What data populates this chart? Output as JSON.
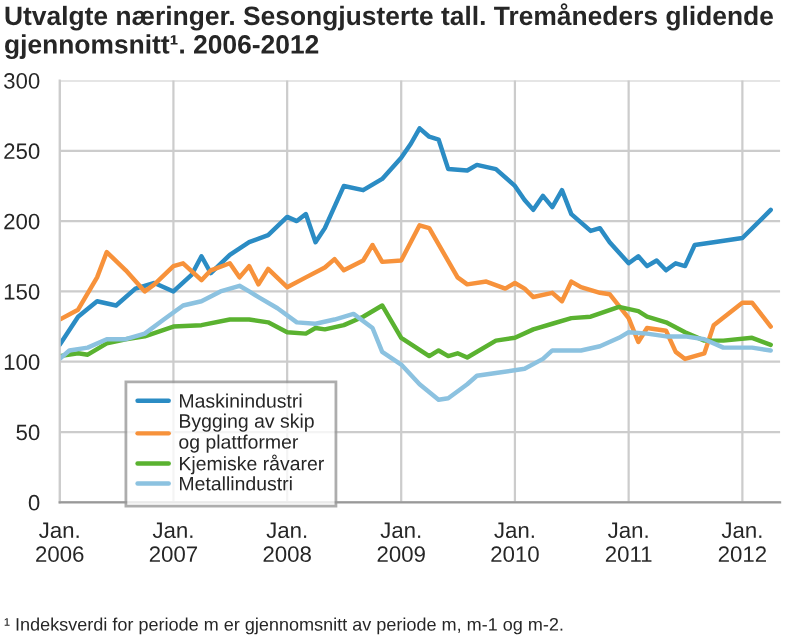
{
  "chart_data": {
    "type": "line",
    "title": "Utvalgte næringer. Sesongjusterte tall. Tremåneders glidende gjennomsnitt¹. 2006-2012",
    "annotations": [
      "¹ Indeksverdi for periode m er gjennomsnitt av periode m, m-1 og m-2."
    ],
    "series": [
      {
        "name": "Maskinindustri",
        "color": "#2b8cc4",
        "x": [
          "2006-01",
          "2006-03",
          "2006-05",
          "2006-07",
          "2006-09",
          "2006-11",
          "2007-01",
          "2007-03",
          "2007-04",
          "2007-05",
          "2007-07",
          "2007-09",
          "2007-11",
          "2008-01",
          "2008-02",
          "2008-03",
          "2008-04",
          "2008-05",
          "2008-07",
          "2008-09",
          "2008-11",
          "2009-01",
          "2009-02",
          "2009-03",
          "2009-04",
          "2009-05",
          "2009-06",
          "2009-08",
          "2009-09",
          "2009-11",
          "2010-01",
          "2010-02",
          "2010-03",
          "2010-04",
          "2010-05",
          "2010-06",
          "2010-07",
          "2010-09",
          "2010-10",
          "2010-11",
          "2011-01",
          "2011-02",
          "2011-03",
          "2011-04",
          "2011-05",
          "2011-06",
          "2011-07",
          "2011-08",
          "2011-10",
          "2012-01",
          "2012-04"
        ],
        "values": [
          112,
          132,
          143,
          140,
          152,
          156,
          150,
          162,
          175,
          163,
          176,
          185,
          190,
          203,
          200,
          205,
          185,
          195,
          225,
          222,
          230,
          245,
          255,
          266,
          260,
          258,
          237,
          236,
          240,
          237,
          225,
          215,
          208,
          218,
          210,
          222,
          205,
          193,
          195,
          185,
          170,
          175,
          168,
          172,
          165,
          170,
          168,
          183,
          185,
          188,
          208
        ]
      },
      {
        "name": "Bygging av skip og plattformer",
        "color": "#f7923b",
        "x": [
          "2006-01",
          "2006-03",
          "2006-05",
          "2006-06",
          "2006-08",
          "2006-10",
          "2006-11",
          "2007-01",
          "2007-02",
          "2007-04",
          "2007-05",
          "2007-07",
          "2007-08",
          "2007-09",
          "2007-10",
          "2007-11",
          "2008-01",
          "2008-03",
          "2008-05",
          "2008-06",
          "2008-07",
          "2008-09",
          "2008-10",
          "2008-11",
          "2009-01",
          "2009-03",
          "2009-04",
          "2009-07",
          "2009-08",
          "2009-10",
          "2009-12",
          "2010-01",
          "2010-02",
          "2010-03",
          "2010-05",
          "2010-06",
          "2010-07",
          "2010-08",
          "2010-10",
          "2010-11",
          "2011-01",
          "2011-02",
          "2011-03",
          "2011-05",
          "2011-06",
          "2011-07",
          "2011-09",
          "2011-10",
          "2012-01",
          "2012-02",
          "2012-04"
        ],
        "values": [
          130,
          137,
          160,
          178,
          165,
          150,
          155,
          168,
          170,
          158,
          165,
          170,
          160,
          168,
          155,
          166,
          153,
          160,
          167,
          173,
          165,
          172,
          183,
          171,
          172,
          197,
          195,
          160,
          155,
          157,
          152,
          156,
          152,
          146,
          149,
          143,
          157,
          153,
          149,
          148,
          131,
          114,
          124,
          122,
          107,
          102,
          106,
          126,
          142,
          142,
          125
        ]
      },
      {
        "name": "Kjemiske råvarer",
        "color": "#5ab230",
        "x": [
          "2006-01",
          "2006-03",
          "2006-04",
          "2006-06",
          "2006-08",
          "2006-10",
          "2007-01",
          "2007-04",
          "2007-07",
          "2007-09",
          "2007-11",
          "2008-01",
          "2008-03",
          "2008-04",
          "2008-05",
          "2008-07",
          "2008-09",
          "2008-11",
          "2009-01",
          "2009-04",
          "2009-05",
          "2009-06",
          "2009-07",
          "2009-08",
          "2009-11",
          "2010-01",
          "2010-03",
          "2010-05",
          "2010-07",
          "2010-09",
          "2010-12",
          "2011-02",
          "2011-03",
          "2011-05",
          "2011-07",
          "2011-09",
          "2011-11",
          "2012-02",
          "2012-04"
        ],
        "values": [
          104,
          106,
          105,
          113,
          116,
          118,
          125,
          126,
          130,
          130,
          128,
          121,
          120,
          124,
          123,
          126,
          132,
          140,
          117,
          104,
          108,
          104,
          106,
          103,
          115,
          117,
          123,
          127,
          131,
          132,
          139,
          136,
          132,
          128,
          121,
          115,
          115,
          117,
          112
        ]
      },
      {
        "name": "Metallindustri",
        "color": "#8cc2e0",
        "x": [
          "2006-01",
          "2006-02",
          "2006-04",
          "2006-06",
          "2006-08",
          "2006-10",
          "2006-12",
          "2007-02",
          "2007-04",
          "2007-06",
          "2007-08",
          "2007-09",
          "2007-10",
          "2007-12",
          "2008-02",
          "2008-04",
          "2008-06",
          "2008-08",
          "2008-10",
          "2008-11",
          "2009-01",
          "2009-03",
          "2009-05",
          "2009-06",
          "2009-08",
          "2009-09",
          "2009-11",
          "2010-02",
          "2010-04",
          "2010-05",
          "2010-08",
          "2010-10",
          "2010-12",
          "2011-01",
          "2011-03",
          "2011-05",
          "2011-07",
          "2011-09",
          "2011-11",
          "2012-02",
          "2012-04"
        ],
        "values": [
          102,
          108,
          110,
          116,
          116,
          120,
          130,
          140,
          143,
          150,
          154,
          150,
          146,
          138,
          128,
          127,
          130,
          134,
          124,
          107,
          98,
          84,
          73,
          74,
          84,
          90,
          92,
          95,
          102,
          108,
          108,
          111,
          117,
          121,
          120,
          118,
          118,
          116,
          110,
          110,
          108
        ]
      }
    ],
    "xlim": [
      "2006-01",
      "2012-05"
    ],
    "xticks": [
      {
        "value": "2006-01",
        "label": "Jan.\n2006"
      },
      {
        "value": "2007-01",
        "label": "Jan.\n2007"
      },
      {
        "value": "2008-01",
        "label": "Jan.\n2008"
      },
      {
        "value": "2009-01",
        "label": "Jan.\n2009"
      },
      {
        "value": "2010-01",
        "label": "Jan.\n2010"
      },
      {
        "value": "2011-01",
        "label": "Jan.\n2011"
      },
      {
        "value": "2012-01",
        "label": "Jan.\n2012"
      }
    ],
    "ylim": [
      0,
      300
    ],
    "yticks": [
      0,
      50,
      100,
      150,
      200,
      250,
      300
    ],
    "grid": true,
    "legend": "bottom left",
    "marker": "none",
    "line_style": "solid"
  }
}
